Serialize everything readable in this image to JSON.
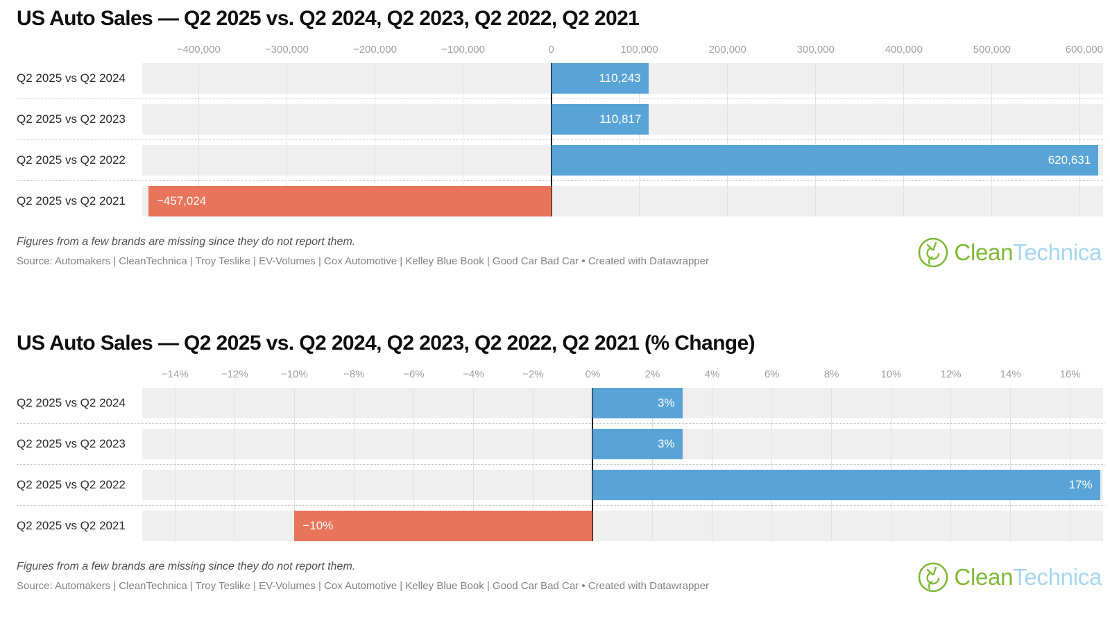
{
  "page": {
    "footnote": "Figures from a few brands are missing since they do not report them.",
    "source": "Source: Automakers | CleanTechnica | Troy Teslike | EV-Volumes | Cox Automotive | Kelley Blue Book | Good Car Bad Car • Created with Datawrapper",
    "logo": {
      "green_text": "Clean",
      "blue_text": "Technica",
      "green": "#7eb936",
      "blue": "#a7d6f1"
    }
  },
  "colors": {
    "positive_bar": "#58a4d7",
    "negative_bar": "#e8745b",
    "row_band": "#efefef",
    "gridline": "#e1e1e1",
    "zero_line": "#000000",
    "axis_label": "#9e9e9e",
    "row_label": "#2a2a2a",
    "bar_label": "#ffffff"
  },
  "chart_data": [
    {
      "type": "bar",
      "orientation": "horizontal",
      "title": "US Auto Sales — Q2 2025 vs. Q2 2024, Q2 2023, Q2 2022, Q2 2021",
      "categories": [
        "Q2 2025 vs Q2 2024",
        "Q2 2025 vs Q2 2023",
        "Q2 2025 vs Q2 2022",
        "Q2 2025 vs Q2 2021"
      ],
      "values": [
        110243,
        110817,
        620631,
        -457024
      ],
      "value_labels": [
        "110,243",
        "110,817",
        "620,631",
        "−457,024"
      ],
      "xlim": [
        -464000,
        626000
      ],
      "ticks": [
        -400000,
        -300000,
        -200000,
        -100000,
        0,
        100000,
        200000,
        300000,
        400000,
        500000,
        600000
      ],
      "tick_labels": [
        "−400,000",
        "−300,000",
        "−200,000",
        "−100,000",
        "0",
        "100,000",
        "200,000",
        "300,000",
        "400,000",
        "500,000",
        "600,000"
      ],
      "grid": true,
      "legend": "none"
    },
    {
      "type": "bar",
      "orientation": "horizontal",
      "title": "US Auto Sales — Q2 2025 vs. Q2 2024, Q2 2023, Q2 2022, Q2 2021 (% Change)",
      "categories": [
        "Q2 2025 vs Q2 2024",
        "Q2 2025 vs Q2 2023",
        "Q2 2025 vs Q2 2022",
        "Q2 2025 vs Q2 2021"
      ],
      "values": [
        3,
        3,
        17,
        -10
      ],
      "value_labels": [
        "3%",
        "3%",
        "17%",
        "−10%"
      ],
      "xlim": [
        -15.1,
        17.1
      ],
      "ticks": [
        -14,
        -12,
        -10,
        -8,
        -6,
        -4,
        -2,
        0,
        2,
        4,
        6,
        8,
        10,
        12,
        14,
        16
      ],
      "tick_labels": [
        "−14%",
        "−12%",
        "−10%",
        "−8%",
        "−6%",
        "−4%",
        "−2%",
        "0%",
        "2%",
        "4%",
        "6%",
        "8%",
        "10%",
        "12%",
        "14%",
        "16%"
      ],
      "grid": true,
      "legend": "none"
    }
  ]
}
